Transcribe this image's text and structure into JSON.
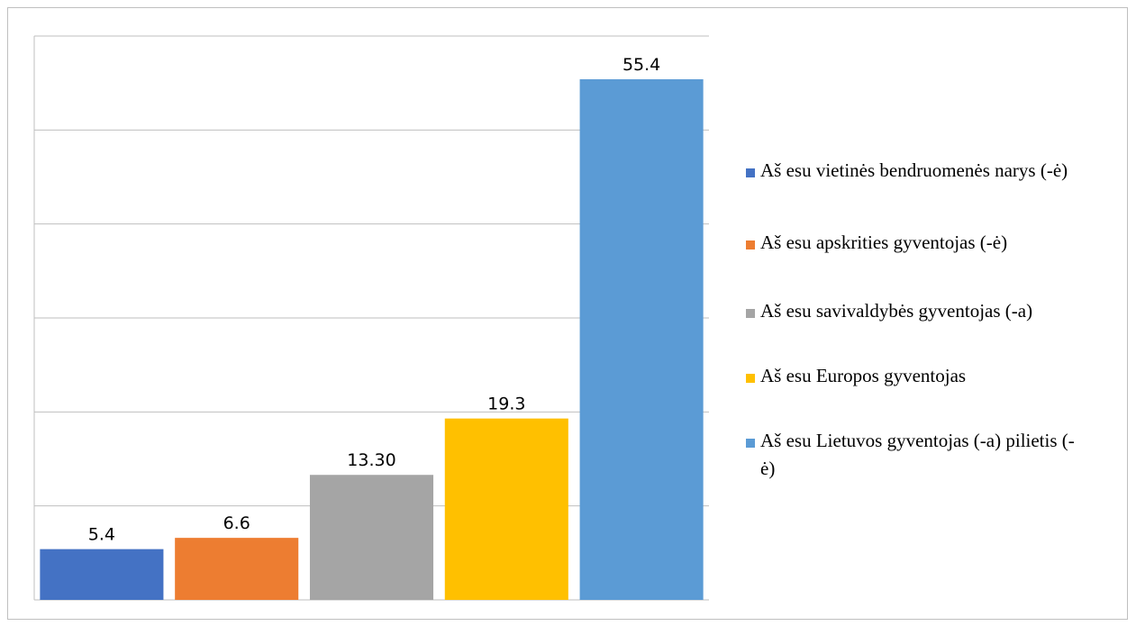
{
  "chart_data": {
    "type": "bar",
    "title": "",
    "xlabel": "",
    "ylabel": "",
    "ylim": [
      0,
      60
    ],
    "grid": true,
    "legend_position": "right",
    "categories": [
      "Aš esu vietinės bendruomenės narys (-ė)",
      "Aš esu apskrities gyventojas (-ė)",
      "Aš esu savivaldybės gyventojas (-a)",
      "Aš esu Europos gyventojas",
      "Aš esu Lietuvos gyventojas (-a) pilietis (-ė)"
    ],
    "values": [
      5.4,
      6.6,
      13.3,
      19.3,
      55.4
    ],
    "data_labels": [
      "5.4",
      "6.6",
      "13.30",
      "19.3",
      "55.4"
    ],
    "colors": [
      "#4472c4",
      "#ed7d31",
      "#a5a5a5",
      "#ffc000",
      "#5b9bd5"
    ]
  }
}
